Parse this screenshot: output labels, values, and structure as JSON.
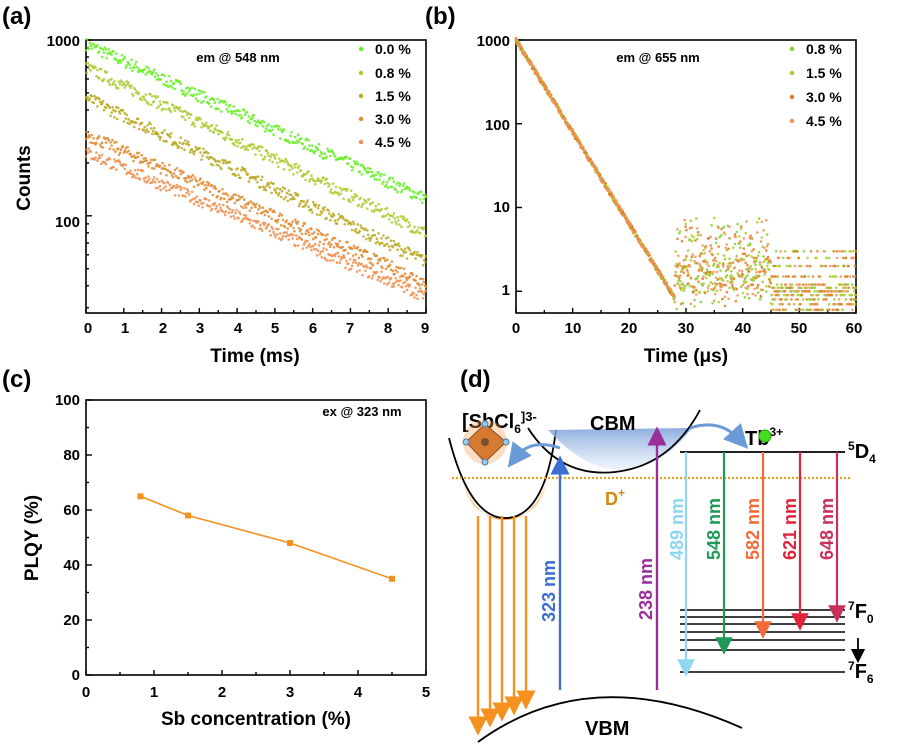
{
  "chart_data": [
    {
      "panel": "(a)",
      "type": "scatter",
      "annotation": "em @ 548 nm",
      "xlabel": "Time (ms)",
      "ylabel": "Counts",
      "xlim": [
        0,
        9
      ],
      "ylim": [
        28,
        1000
      ],
      "yscale": "log",
      "xticks": [
        "0",
        "1",
        "2",
        "3",
        "4",
        "5",
        "6",
        "7",
        "8",
        "9"
      ],
      "yticks": [
        "100",
        "1000"
      ],
      "legend_position": "top-right",
      "series": [
        {
          "name": "0.0 %",
          "color": "#66ee22",
          "start": 950,
          "end": 125
        },
        {
          "name": "0.8 %",
          "color": "#aacc33",
          "start": 700,
          "end": 80
        },
        {
          "name": "1.5 %",
          "color": "#b8a820",
          "start": 470,
          "end": 55
        },
        {
          "name": "3.0 %",
          "color": "#e08a30",
          "start": 290,
          "end": 42
        },
        {
          "name": "4.5 %",
          "color": "#f08f50",
          "start": 230,
          "end": 35
        }
      ]
    },
    {
      "panel": "(b)",
      "type": "scatter",
      "annotation": "em @ 655 nm",
      "xlabel": "Time (μs)",
      "ylabel": "",
      "xlim": [
        0,
        60
      ],
      "ylim": [
        0.55,
        1000
      ],
      "yscale": "log",
      "xticks": [
        "0",
        "10",
        "20",
        "30",
        "40",
        "50",
        "60"
      ],
      "yticks": [
        "1",
        "10",
        "100",
        "1000"
      ],
      "legend_position": "top-right",
      "series": [
        {
          "name": "0.8 %",
          "color": "#88cc33",
          "start": 1000,
          "decay_us": 3.95
        },
        {
          "name": "1.5 %",
          "color": "#aacc22",
          "start": 1000,
          "decay_us": 3.95
        },
        {
          "name": "3.0 %",
          "color": "#e07a20",
          "start": 1000,
          "decay_us": 3.95
        },
        {
          "name": "4.5 %",
          "color": "#f0905a",
          "start": 1000,
          "decay_us": 3.95
        }
      ]
    },
    {
      "panel": "(c)",
      "type": "line",
      "annotation": "ex @ 323 nm",
      "xlabel": "Sb concentration (%)",
      "ylabel": "PLQY (%)",
      "xlim": [
        0,
        5
      ],
      "ylim": [
        0,
        100
      ],
      "xticks": [
        "0",
        "1",
        "2",
        "3",
        "4",
        "5"
      ],
      "yticks": [
        "0",
        "20",
        "40",
        "60",
        "80",
        "100"
      ],
      "color": "#f5911e",
      "x": [
        0.8,
        1.5,
        3.0,
        4.5
      ],
      "y": [
        65,
        58,
        48,
        35
      ]
    }
  ],
  "panel_labels": {
    "a": "(a)",
    "b": "(b)",
    "c": "(c)",
    "d": "(d)"
  },
  "diagram": {
    "host": "[SbCl",
    "host_sub": "6",
    "host_sup": "]3-",
    "cbm": "CBM",
    "vbm": "VBM",
    "defect": "D",
    "defect_sup": "+",
    "ion": "Tb",
    "ion_sup": "3+",
    "upper_level": {
      "sup": "5",
      "text": "D",
      "sub": "4"
    },
    "lower_level_top": {
      "sup": "7",
      "text": "F",
      "sub": "0"
    },
    "lower_level_bottom": {
      "sup": "7",
      "text": "F",
      "sub": "6"
    },
    "excitations": [
      {
        "label": "323 nm",
        "color": "#3a6fd0"
      },
      {
        "label": "238 nm",
        "color": "#9b2f9a"
      }
    ],
    "emissions": [
      {
        "label": "489 nm",
        "color": "#8fd6ef"
      },
      {
        "label": "548 nm",
        "color": "#1e9a56"
      },
      {
        "label": "582 nm",
        "color": "#f26a3a"
      },
      {
        "label": "621 nm",
        "color": "#e0223a"
      },
      {
        "label": "648 nm",
        "color": "#c8305a"
      }
    ],
    "colors": {
      "orange": "#f5911e",
      "cbm_fill": "#7a9fd8",
      "defect_line": "#e6a020",
      "tb_dot": "#44dd22"
    }
  }
}
